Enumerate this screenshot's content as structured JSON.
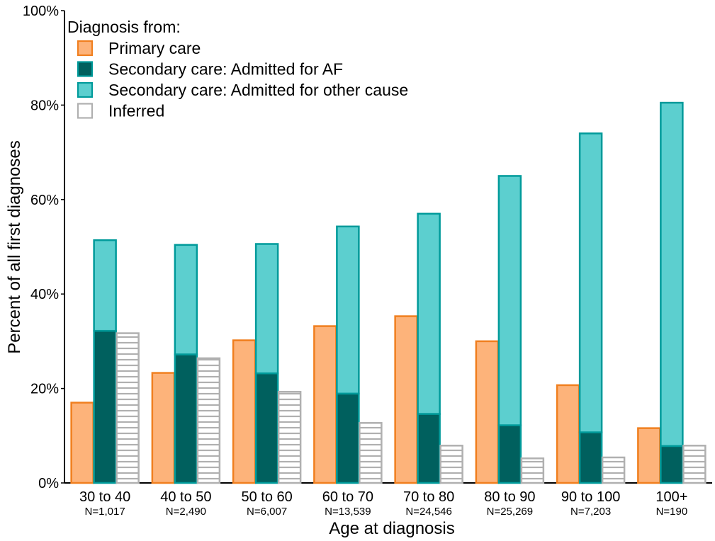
{
  "chart_data": {
    "type": "bar",
    "xlabel": "Age at diagnosis",
    "ylabel": "Percent of all first diagnoses",
    "ylim": [
      0,
      100
    ],
    "y_ticks": [
      "0%",
      "20%",
      "40%",
      "60%",
      "80%",
      "100%"
    ],
    "categories": [
      "30 to 40",
      "40 to 50",
      "50 to 60",
      "60 to 70",
      "70 to 80",
      "80 to 90",
      "90 to 100",
      "100+"
    ],
    "category_n": [
      "N=1,017",
      "N=2,490",
      "N=6,007",
      "N=13,539",
      "N=24,546",
      "N=25,269",
      "N=7,203",
      "N=190"
    ],
    "legend": {
      "title": "Diagnosis from:",
      "placement": "top-left"
    },
    "series": [
      {
        "name": "Primary care",
        "fill": "#fdb37a",
        "stroke": "#f07f1f",
        "style": "solid",
        "values": [
          17,
          23.3,
          30.2,
          33.2,
          35.3,
          30,
          20.7,
          11.6
        ]
      },
      {
        "name": "Secondary care: Admitted for AF",
        "fill": "#00605e",
        "stroke": "#009a9a",
        "style": "solid",
        "stacked_bottom": true,
        "values": [
          32.2,
          27.2,
          23.2,
          18.9,
          14.6,
          12.2,
          10.7,
          7.8
        ]
      },
      {
        "name": "Secondary care: Admitted for other cause",
        "fill": "#5ccfcf",
        "stroke": "#009a9a",
        "style": "solid",
        "stacked_on": "Secondary care: Admitted for AF",
        "values": [
          19.2,
          23.2,
          27.4,
          35.4,
          42.4,
          52.8,
          63.3,
          72.7
        ]
      },
      {
        "name": "Inferred",
        "fill": "#ffffff",
        "stroke": "#b0b0b0",
        "style": "hatched",
        "values": [
          31.7,
          26.4,
          19.3,
          12.7,
          7.9,
          5.2,
          5.4,
          7.9
        ]
      }
    ],
    "grid": false
  }
}
